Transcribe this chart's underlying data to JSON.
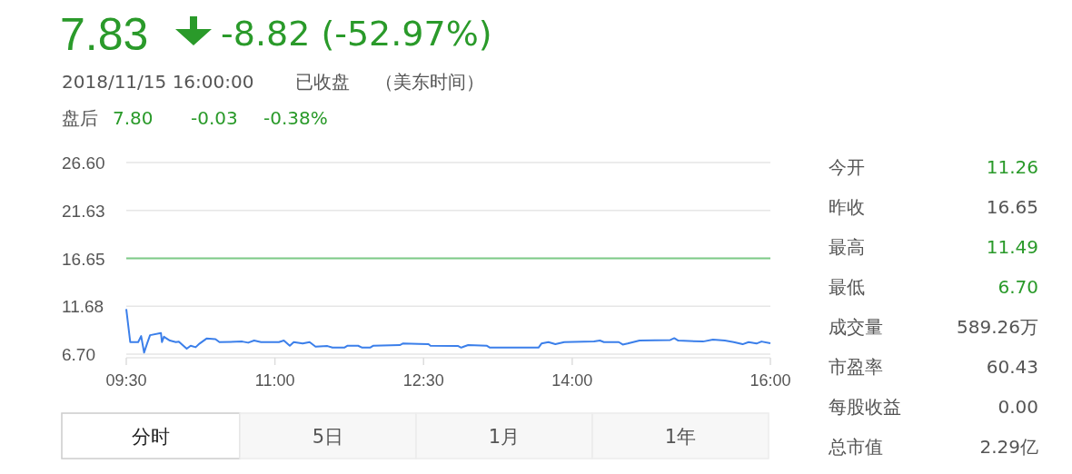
{
  "chart_data": {
    "type": "line",
    "title": "7.83",
    "x": [
      9.5,
      9.54,
      9.62,
      9.65,
      9.68,
      9.71,
      9.74,
      9.85,
      9.86,
      9.88,
      9.94,
      10.0,
      10.03,
      10.11,
      10.15,
      10.2,
      10.24,
      10.31,
      10.4,
      10.44,
      10.67,
      10.73,
      10.79,
      10.86,
      11.04,
      11.09,
      11.15,
      11.19,
      11.28,
      11.35,
      11.41,
      11.53,
      11.58,
      11.7,
      11.73,
      11.84,
      11.88,
      11.96,
      11.99,
      12.26,
      12.29,
      12.45,
      12.55,
      12.57,
      12.85,
      12.88,
      12.95,
      13.14,
      13.17,
      13.66,
      13.69,
      13.76,
      13.83,
      13.92,
      14.22,
      14.28,
      14.32,
      14.47,
      14.51,
      14.56,
      14.68,
      14.99,
      15.03,
      15.07,
      15.32,
      15.42,
      15.54,
      15.63,
      15.72,
      15.78,
      15.86,
      15.91,
      16.0
    ],
    "series": [
      {
        "color": "#3b7fea",
        "values": [
          11.39,
          7.95,
          7.95,
          8.58,
          6.86,
          7.8,
          8.67,
          8.89,
          7.95,
          8.51,
          8.11,
          7.95,
          8.0,
          7.26,
          7.57,
          7.42,
          7.8,
          8.32,
          8.26,
          7.95,
          8.01,
          7.89,
          8.11,
          7.95,
          7.95,
          8.11,
          7.57,
          7.95,
          7.8,
          7.95,
          7.48,
          7.54,
          7.38,
          7.38,
          7.57,
          7.57,
          7.38,
          7.38,
          7.57,
          7.64,
          7.8,
          7.76,
          7.73,
          7.57,
          7.54,
          7.38,
          7.64,
          7.57,
          7.38,
          7.38,
          7.8,
          7.95,
          7.73,
          7.95,
          8.01,
          8.11,
          7.95,
          7.95,
          7.7,
          7.8,
          8.11,
          8.17,
          8.36,
          8.11,
          8.01,
          8.2,
          8.11,
          7.95,
          7.73,
          7.95,
          7.8,
          8.01,
          7.83
        ]
      }
    ],
    "xlim": [
      9.5,
      16.0
    ],
    "xticks": [
      {
        "value": 9.5,
        "label": "09:30"
      },
      {
        "value": 11.0,
        "label": "11:00"
      },
      {
        "value": 12.5,
        "label": "12:30"
      },
      {
        "value": 14.0,
        "label": "14:00"
      },
      {
        "value": 16.0,
        "label": "16:00"
      }
    ],
    "ylim": [
      6.7,
      26.6
    ],
    "yticks": [
      {
        "value": 6.7,
        "label": "6.70"
      },
      {
        "value": 11.68,
        "label": "11.68"
      },
      {
        "value": 16.65,
        "label": "16.65"
      },
      {
        "value": 21.63,
        "label": "21.63"
      },
      {
        "value": 26.6,
        "label": "26.60"
      }
    ],
    "ref_lines": [
      {
        "axis": "y",
        "value": 16.65,
        "color": "#7ecb87"
      }
    ],
    "grid": "y",
    "marker": "none",
    "line_style": "solid",
    "annotations": [
      "-8.82 (-52.97%)",
      "2018/11/15 16:00:00",
      "已收盘",
      "（美东时间）",
      "盘后",
      "7.80",
      "-0.03",
      "-0.38%",
      "今开",
      "11.26",
      "昨收",
      "16.65",
      "最高",
      "11.49",
      "最低",
      "6.70",
      "成交量",
      "589.26万",
      "市盈率",
      "60.43",
      "每股收益",
      "0.00",
      "总市值",
      "2.29亿",
      "分时",
      "5日",
      "1月",
      "1年"
    ]
  }
}
